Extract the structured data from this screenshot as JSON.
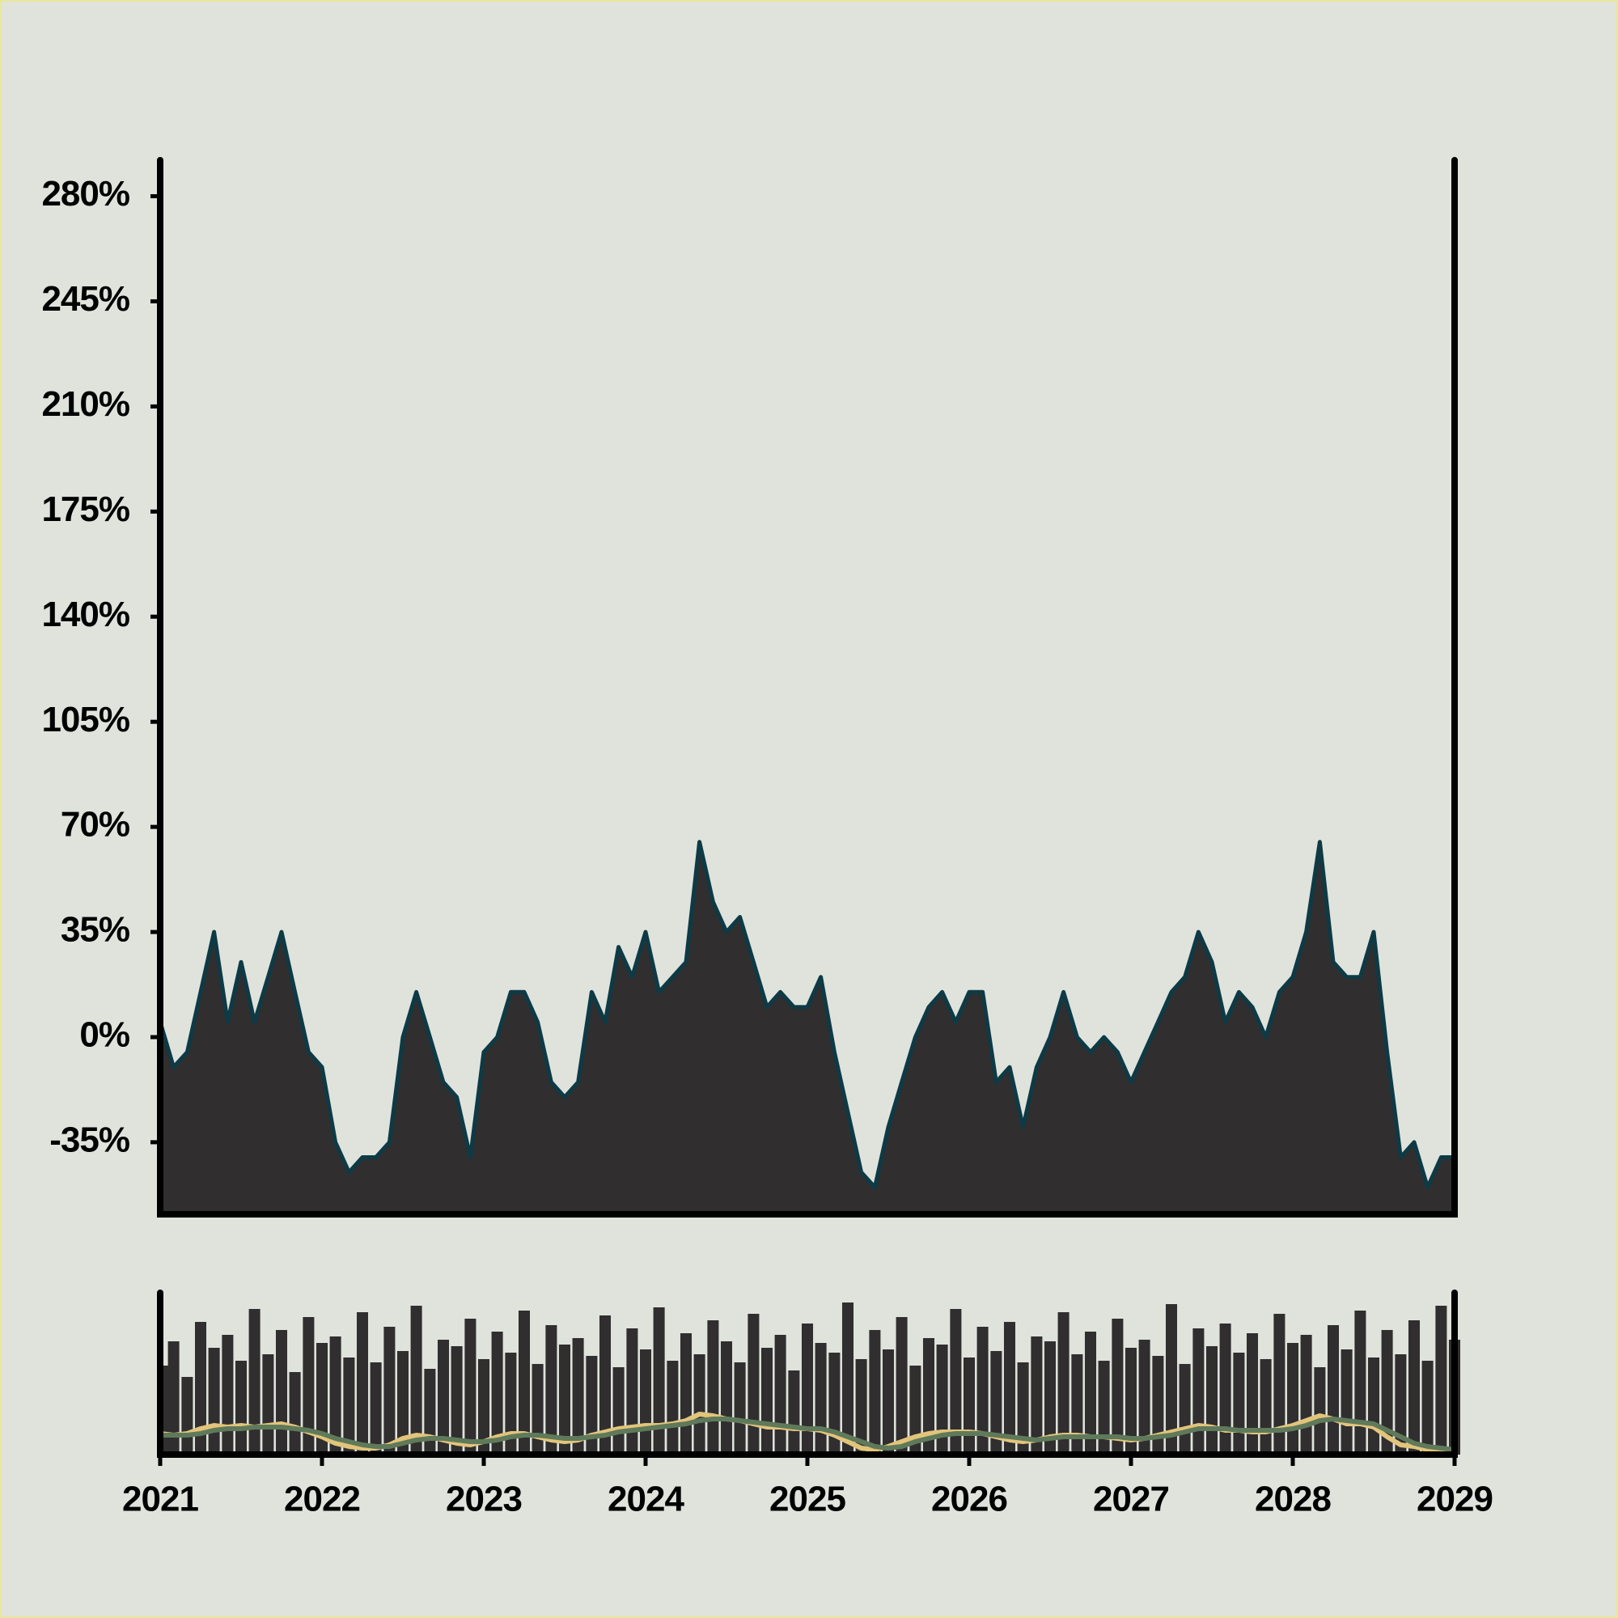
{
  "chart_data": [
    {
      "type": "area",
      "color": "#302e2f",
      "line_color": "#0e3a45",
      "x": [
        2021,
        2021.083,
        2021.167,
        2021.25,
        2021.333,
        2021.417,
        2021.5,
        2021.583,
        2021.667,
        2021.75,
        2021.833,
        2021.917,
        2022,
        2022.083,
        2022.167,
        2022.25,
        2022.333,
        2022.417,
        2022.5,
        2022.583,
        2022.667,
        2022.75,
        2022.833,
        2022.917,
        2023,
        2023.083,
        2023.167,
        2023.25,
        2023.333,
        2023.417,
        2023.5,
        2023.583,
        2023.667,
        2023.75,
        2023.833,
        2023.917,
        2024,
        2024.083,
        2024.167,
        2024.25,
        2024.333,
        2024.417,
        2024.5,
        2024.583,
        2024.667,
        2024.75,
        2024.833,
        2024.917,
        2025,
        2025.083,
        2025.167,
        2025.25,
        2025.333,
        2025.417,
        2025.5,
        2025.583,
        2025.667,
        2025.75,
        2025.833,
        2025.917,
        2026,
        2026.083,
        2026.167,
        2026.25,
        2026.333,
        2026.417,
        2026.5,
        2026.583,
        2026.667,
        2026.75,
        2026.833,
        2026.917,
        2027,
        2027.083,
        2027.167,
        2027.25,
        2027.333,
        2027.417,
        2027.5,
        2027.583,
        2027.667,
        2027.75,
        2027.833,
        2027.917,
        2028,
        2028.083,
        2028.167,
        2028.25,
        2028.333,
        2028.417,
        2028.5,
        2028.583,
        2028.667,
        2028.75,
        2028.833,
        2028.917,
        2029
      ],
      "values": [
        5,
        -10,
        -5,
        15,
        35,
        5,
        25,
        5,
        20,
        35,
        15,
        -5,
        -10,
        -35,
        -45,
        -40,
        -40,
        -35,
        0,
        15,
        0,
        -15,
        -20,
        -40,
        -5,
        0,
        15,
        15,
        5,
        -15,
        -20,
        -15,
        15,
        5,
        30,
        20,
        35,
        15,
        20,
        25,
        65,
        45,
        35,
        40,
        25,
        10,
        15,
        10,
        10,
        20,
        -5,
        -25,
        -45,
        -50,
        -30,
        -15,
        0,
        10,
        15,
        5,
        15,
        15,
        -15,
        -10,
        -30,
        -10,
        0,
        15,
        0,
        -5,
        0,
        -5,
        -15,
        -5,
        5,
        15,
        20,
        35,
        25,
        5,
        15,
        10,
        0,
        15,
        20,
        35,
        65,
        25,
        20,
        20,
        35,
        -5,
        -40,
        -35,
        -50,
        -40,
        -40
      ],
      "xlim": [
        2021,
        2029
      ],
      "ylim": [
        -59,
        292
      ],
      "yticks": [
        {
          "value": -35,
          "label": "-35%"
        },
        {
          "value": 0,
          "label": "0%"
        },
        {
          "value": 35,
          "label": "35%"
        },
        {
          "value": 70,
          "label": "70%"
        },
        {
          "value": 105,
          "label": "105%"
        },
        {
          "value": 140,
          "label": "140%"
        },
        {
          "value": 175,
          "label": "175%"
        },
        {
          "value": 210,
          "label": "210%"
        },
        {
          "value": 245,
          "label": "245%"
        },
        {
          "value": 280,
          "label": "280%"
        }
      ]
    },
    {
      "type": "volume",
      "color": "#302e2f",
      "ylim": [
        0,
        100
      ],
      "values": [
        55,
        70,
        48,
        82,
        66,
        74,
        58,
        90,
        62,
        77,
        51,
        85,
        69,
        73,
        60,
        88,
        57,
        79,
        64,
        92,
        53,
        71,
        67,
        84,
        59,
        76,
        63,
        89,
        56,
        80,
        68,
        72,
        61,
        86,
        54,
        78,
        65,
        91,
        58,
        75,
        62,
        83,
        70,
        57,
        87,
        66,
        74,
        52,
        81,
        69,
        63,
        94,
        59,
        77,
        65,
        85,
        55,
        72,
        68,
        90,
        60,
        79,
        64,
        82,
        57,
        73,
        70,
        88,
        62,
        76,
        58,
        84,
        66,
        71,
        61,
        93,
        56,
        78,
        67,
        81,
        63,
        75,
        59,
        87,
        69,
        74,
        54,
        80,
        65,
        89,
        60,
        77,
        62,
        83,
        58,
        92,
        71
      ],
      "series": [
        {
          "color": "#e2c47a",
          "values": [
            13,
            12,
            13,
            16,
            18,
            17,
            18,
            17,
            18,
            19,
            17,
            14,
            11,
            7,
            5,
            4,
            4,
            6,
            10,
            12,
            11,
            9,
            7,
            6,
            8,
            11,
            13,
            13,
            11,
            9,
            8,
            9,
            12,
            14,
            16,
            17,
            18,
            18,
            19,
            21,
            25,
            24,
            22,
            21,
            19,
            17,
            17,
            16,
            16,
            15,
            12,
            8,
            4,
            3,
            5,
            8,
            11,
            13,
            14,
            14,
            14,
            13,
            11,
            9,
            8,
            9,
            11,
            12,
            12,
            11,
            11,
            10,
            9,
            10,
            12,
            14,
            16,
            18,
            17,
            15,
            15,
            14,
            14,
            16,
            18,
            21,
            24,
            22,
            19,
            19,
            17,
            11,
            6,
            5,
            3,
            3,
            3
          ]
        },
        {
          "color": "#5f7a5a",
          "values": [
            12,
            12,
            12,
            13,
            15,
            16,
            16,
            17,
            17,
            17,
            16,
            15,
            13,
            10,
            8,
            6,
            5,
            5,
            7,
            9,
            10,
            10,
            9,
            8,
            8,
            9,
            11,
            12,
            12,
            11,
            10,
            10,
            11,
            12,
            14,
            15,
            16,
            17,
            18,
            19,
            21,
            22,
            22,
            21,
            20,
            19,
            18,
            17,
            16,
            16,
            14,
            11,
            8,
            5,
            4,
            5,
            8,
            10,
            12,
            13,
            13,
            13,
            12,
            11,
            10,
            9,
            10,
            11,
            11,
            11,
            11,
            11,
            10,
            10,
            11,
            12,
            14,
            16,
            16,
            16,
            15,
            15,
            15,
            15,
            16,
            18,
            21,
            22,
            21,
            20,
            19,
            15,
            11,
            7,
            5,
            4,
            3
          ]
        }
      ],
      "xticks": [
        2021,
        2022,
        2023,
        2024,
        2025,
        2026,
        2027,
        2028,
        2029
      ]
    }
  ]
}
